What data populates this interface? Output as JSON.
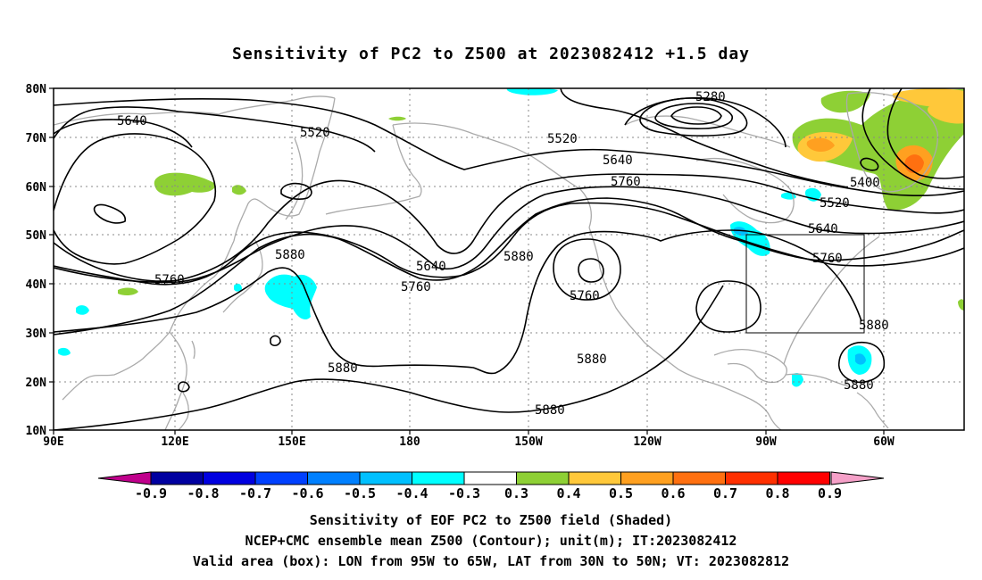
{
  "title": "Sensitivity of PC2 to Z500 at 2023082412 +1.5 day",
  "lat_ticks": [
    "80N",
    "70N",
    "60N",
    "50N",
    "40N",
    "30N",
    "20N",
    "10N"
  ],
  "lon_ticks": [
    "90E",
    "120E",
    "150E",
    "180",
    "150W",
    "120W",
    "90W",
    "60W"
  ],
  "contours": [
    {
      "label": "5280"
    },
    {
      "label": "5400"
    },
    {
      "label": "5520"
    },
    {
      "label": "5520"
    },
    {
      "label": "5520"
    },
    {
      "label": "5640"
    },
    {
      "label": "5640"
    },
    {
      "label": "5640"
    },
    {
      "label": "5640"
    },
    {
      "label": "5760"
    },
    {
      "label": "5760"
    },
    {
      "label": "5760"
    },
    {
      "label": "5760"
    },
    {
      "label": "5760"
    },
    {
      "label": "5880"
    },
    {
      "label": "5880"
    },
    {
      "label": "5880"
    },
    {
      "label": "5880"
    },
    {
      "label": "5880"
    },
    {
      "label": "5880"
    },
    {
      "label": "5880"
    }
  ],
  "colorbar": {
    "labels": [
      "-0.9",
      "-0.8",
      "-0.7",
      "-0.6",
      "-0.5",
      "-0.4",
      "-0.3",
      "0.3",
      "0.4",
      "0.5",
      "0.6",
      "0.7",
      "0.8",
      "0.9"
    ],
    "colors": [
      "#0000a0",
      "#0000e0",
      "#0040ff",
      "#0080ff",
      "#00c0ff",
      "#00ffff",
      "#ffffff",
      "#8ed035",
      "#ffc83a",
      "#ffa020",
      "#ff7010",
      "#ff3000",
      "#ff0000"
    ],
    "low_color": "#c0008c",
    "high_color": "#f5a0c8"
  },
  "box": {
    "lon_from": "95W",
    "lon_to": "65W",
    "lat_from": "30N",
    "lat_to": "50N"
  },
  "captions": [
    "Sensitivity of EOF PC2 to Z500 field (Shaded)",
    "NCEP+CMC ensemble mean Z500 (Contour); unit(m); IT:2023082412",
    "Valid area (box): LON from 95W to 65W, LAT from 30N to 50N; VT: 2023082812"
  ]
}
